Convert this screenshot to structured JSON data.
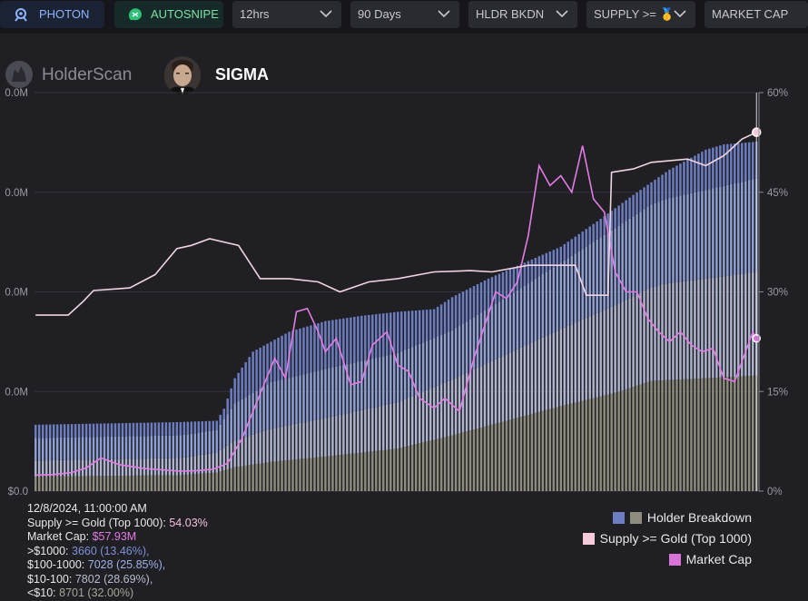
{
  "toolbar": {
    "photon": {
      "label": "PHOTON",
      "icon": "photon-icon"
    },
    "autosnipe": {
      "label": "AUTOSNIPE",
      "icon": "autosnipe-icon"
    },
    "interval": {
      "value": "12hrs"
    },
    "range": {
      "value": "90 Days"
    },
    "view": {
      "value": "HLDR BKDN"
    },
    "supply": {
      "value": "SUPPLY >= 🥇"
    },
    "metric": {
      "value": "MARKET CAP"
    }
  },
  "brand": {
    "name": "HolderScan",
    "icon": "holderscan-logo-icon"
  },
  "token": {
    "name": "SIGMA",
    "avatar": "token-avatar"
  },
  "colors": {
    "background": "#1f1f24",
    "bar_top": "#6d7ec0",
    "bar_mid1": "#8e9fd6",
    "bar_mid2": "#aeb4cf",
    "bar_bottom": "#8e8c7e",
    "supply_line": "#f0d4e2",
    "market_cap_line": "#e27ce4"
  },
  "chart_data": {
    "type": "bar",
    "left_axis": {
      "ticks": [
        "$0.0",
        "0.0M",
        "0.0M",
        "0.0M",
        "0.0M"
      ],
      "range": [
        0,
        80
      ]
    },
    "right_axis": {
      "ticks": [
        "0%",
        "15%",
        "30%",
        "45%",
        "60%"
      ],
      "range": [
        0,
        60
      ]
    },
    "legend": [
      {
        "label": "Holder Breakdown",
        "colors": [
          "#6d7ec0",
          "#8e8c7e"
        ]
      },
      {
        "label": "Supply >= Gold (Top 1000)",
        "colors": [
          "#f7c9dd"
        ]
      },
      {
        "label": "Market Cap",
        "colors": [
          "#d873d8"
        ]
      }
    ],
    "series_points": {
      "holders_total": [
        [
          0,
          5000
        ],
        [
          20,
          5100
        ],
        [
          40,
          5200
        ],
        [
          50,
          5300
        ],
        [
          52,
          6200
        ],
        [
          55,
          8500
        ],
        [
          60,
          10500
        ],
        [
          70,
          12000
        ],
        [
          80,
          12800
        ],
        [
          90,
          13200
        ],
        [
          100,
          13500
        ],
        [
          110,
          13700
        ],
        [
          115,
          14600
        ],
        [
          125,
          16000
        ],
        [
          135,
          17200
        ],
        [
          145,
          18400
        ],
        [
          155,
          20300
        ],
        [
          165,
          22300
        ],
        [
          175,
          24200
        ],
        [
          185,
          25700
        ],
        [
          190,
          26100
        ],
        [
          199,
          26300
        ]
      ],
      "holders_lt10": [
        [
          0,
          1100
        ],
        [
          40,
          1200
        ],
        [
          50,
          1400
        ],
        [
          55,
          1800
        ],
        [
          65,
          2200
        ],
        [
          80,
          2600
        ],
        [
          100,
          3200
        ],
        [
          115,
          4200
        ],
        [
          130,
          5300
        ],
        [
          145,
          6400
        ],
        [
          160,
          7400
        ],
        [
          170,
          8300
        ],
        [
          185,
          8500
        ],
        [
          199,
          8701
        ]
      ],
      "holders_10_100": [
        [
          0,
          1200
        ],
        [
          40,
          1300
        ],
        [
          50,
          1500
        ],
        [
          55,
          2000
        ],
        [
          65,
          2500
        ],
        [
          80,
          2900
        ],
        [
          100,
          3500
        ],
        [
          115,
          4200
        ],
        [
          130,
          5000
        ],
        [
          145,
          5800
        ],
        [
          160,
          6600
        ],
        [
          175,
          7300
        ],
        [
          199,
          7802
        ]
      ],
      "holders_100_1000": [
        [
          0,
          1700
        ],
        [
          40,
          1700
        ],
        [
          50,
          1700
        ],
        [
          55,
          2800
        ],
        [
          65,
          3500
        ],
        [
          80,
          3700
        ],
        [
          100,
          3700
        ],
        [
          115,
          3700
        ],
        [
          130,
          4300
        ],
        [
          145,
          5000
        ],
        [
          160,
          5800
        ],
        [
          175,
          6400
        ],
        [
          199,
          7028
        ]
      ],
      "supply_pct": [
        [
          0,
          26.5
        ],
        [
          9,
          26.5
        ],
        [
          13,
          28.5
        ],
        [
          16,
          30.2
        ],
        [
          26,
          30.6
        ],
        [
          33,
          32.6
        ],
        [
          39,
          36.5
        ],
        [
          43,
          37
        ],
        [
          48,
          38
        ],
        [
          56,
          37
        ],
        [
          62,
          32
        ],
        [
          70,
          32
        ],
        [
          78,
          31.5
        ],
        [
          84,
          30
        ],
        [
          92,
          31.5
        ],
        [
          100,
          32
        ],
        [
          110,
          33
        ],
        [
          120,
          33.2
        ],
        [
          126,
          33
        ],
        [
          136,
          34
        ],
        [
          149,
          34
        ],
        [
          152,
          29.5
        ],
        [
          158,
          29.5
        ],
        [
          159,
          48
        ],
        [
          165,
          48.5
        ],
        [
          170,
          49.5
        ],
        [
          180,
          50
        ],
        [
          185,
          49
        ],
        [
          190,
          50.5
        ],
        [
          195,
          53
        ],
        [
          199,
          54.03
        ]
      ],
      "market_cap_pct": [
        [
          0,
          2.4
        ],
        [
          5,
          2.5
        ],
        [
          10,
          2.8
        ],
        [
          14,
          3.5
        ],
        [
          18,
          5
        ],
        [
          23,
          4
        ],
        [
          30,
          3.4
        ],
        [
          40,
          3
        ],
        [
          45,
          3.1
        ],
        [
          49,
          3.3
        ],
        [
          53,
          4.2
        ],
        [
          57,
          8
        ],
        [
          60,
          12
        ],
        [
          63,
          16
        ],
        [
          66,
          20
        ],
        [
          69,
          17
        ],
        [
          72,
          27
        ],
        [
          75,
          27.5
        ],
        [
          78,
          24
        ],
        [
          80,
          21
        ],
        [
          83,
          23
        ],
        [
          87,
          16
        ],
        [
          90,
          16.5
        ],
        [
          93,
          22
        ],
        [
          97,
          24
        ],
        [
          100,
          19
        ],
        [
          103,
          18
        ],
        [
          106,
          14
        ],
        [
          110,
          12.5
        ],
        [
          113,
          14
        ],
        [
          117,
          12
        ],
        [
          121,
          20
        ],
        [
          124,
          25
        ],
        [
          127,
          30
        ],
        [
          130,
          29
        ],
        [
          133,
          31.5
        ],
        [
          136,
          38.5
        ],
        [
          139,
          49
        ],
        [
          142,
          46
        ],
        [
          145,
          47.5
        ],
        [
          148,
          45
        ],
        [
          151,
          52
        ],
        [
          154,
          44
        ],
        [
          157,
          42
        ],
        [
          160,
          33
        ],
        [
          163,
          30
        ],
        [
          166,
          30
        ],
        [
          169,
          26
        ],
        [
          172,
          24
        ],
        [
          175,
          22.5
        ],
        [
          178,
          24
        ],
        [
          181,
          22
        ],
        [
          184,
          21
        ],
        [
          187,
          21.5
        ],
        [
          190,
          17
        ],
        [
          193,
          16.5
        ],
        [
          196,
          21
        ],
        [
          198,
          24
        ],
        [
          199,
          23
        ]
      ]
    }
  },
  "info": {
    "timestamp": "12/8/2024, 11:00:00 AM",
    "supply_label": "Supply >= Gold (Top 1000):",
    "supply_value": "54.03%",
    "mcap_label": "Market Cap:",
    "mcap_value": "$57.93M",
    "rows": [
      {
        "label": ">$1000:",
        "value": "3660 (13.46%),"
      },
      {
        "label": "$100-1000:",
        "value": "7028 (25.85%),"
      },
      {
        "label": "$10-100:",
        "value": "7802 (28.69%),"
      },
      {
        "label": "<$10:",
        "value": "8701 (32.00%)"
      }
    ]
  }
}
